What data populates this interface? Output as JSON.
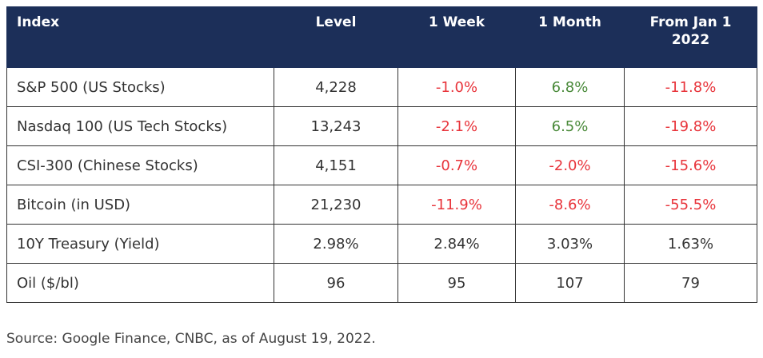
{
  "table": {
    "headers": [
      "Index",
      "Level",
      "1 Week",
      "1 Month",
      "From Jan 1 2022"
    ],
    "rows": [
      [
        "S&P 500 (US Stocks)",
        "4,228",
        "-1.0%",
        "6.8%",
        "-11.8%"
      ],
      [
        "Nasdaq 100 (US Tech Stocks)",
        "13,243",
        "-2.1%",
        "6.5%",
        "-19.8%"
      ],
      [
        "CSI-300 (Chinese Stocks)",
        "4,151",
        "-0.7%",
        "-2.0%",
        "-15.6%"
      ],
      [
        "Bitcoin (in USD)",
        "21,230",
        "-11.9%",
        "-8.6%",
        "-55.5%"
      ],
      [
        "10Y Treasury (Yield)",
        "2.98%",
        "2.84%",
        "3.03%",
        "1.63%"
      ],
      [
        "Oil ($/bl)",
        "96",
        "95",
        "107",
        "79"
      ]
    ]
  },
  "source": "Source: Google Finance, CNBC, as of August 19, 2022.",
  "colors": {
    "header_bg": "#1c2f59",
    "negative": "#e8343b",
    "positive": "#4a8a3a"
  }
}
